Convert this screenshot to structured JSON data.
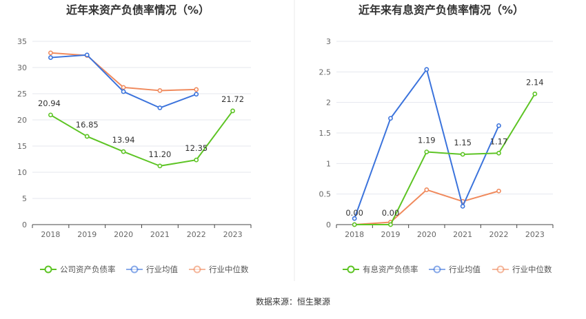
{
  "source_label": "数据来源：恒生聚源",
  "colors": {
    "company": "#5dc424",
    "industry_avg": "#3b73dc",
    "industry_median": "#f08a5d",
    "grid": "#e4e7ee",
    "axis": "#444444"
  },
  "chart_data": [
    {
      "type": "line",
      "title": "近年来资产负债率情况（%）",
      "categories": [
        "2018",
        "2019",
        "2020",
        "2021",
        "2022",
        "2023"
      ],
      "ylim": [
        0,
        35
      ],
      "yticks": [
        "0",
        "5",
        "10",
        "15",
        "20",
        "25",
        "30",
        "35"
      ],
      "grid": true,
      "legend_position": "bottom",
      "series": [
        {
          "name": "公司资产负债率",
          "values": [
            20.94,
            16.85,
            13.94,
            11.2,
            12.35,
            21.72
          ],
          "labels": [
            "20.94",
            "16.85",
            "13.94",
            "11.20",
            "12.35",
            "21.72"
          ]
        },
        {
          "name": "行业均值",
          "values": [
            31.9,
            32.4,
            25.4,
            22.3,
            24.9,
            null
          ]
        },
        {
          "name": "行业中位数",
          "values": [
            32.8,
            32.3,
            26.2,
            25.6,
            25.8,
            null
          ]
        }
      ]
    },
    {
      "type": "line",
      "title": "近年来有息资产负债率情况（%）",
      "categories": [
        "2018",
        "2019",
        "2020",
        "2021",
        "2022",
        "2023"
      ],
      "ylim": [
        0,
        3
      ],
      "yticks": [
        "0",
        "0.5",
        "1",
        "1.5",
        "2",
        "2.5",
        "3"
      ],
      "grid": true,
      "legend_position": "bottom",
      "series": [
        {
          "name": "有息资产负债率",
          "values": [
            0.0,
            0.0,
            1.19,
            1.15,
            1.17,
            2.14
          ],
          "labels": [
            "0.00",
            "0.00",
            "1.19",
            "1.15",
            "1.17",
            "2.14"
          ]
        },
        {
          "name": "行业均值",
          "values": [
            0.1,
            1.74,
            2.54,
            0.3,
            1.62,
            null
          ]
        },
        {
          "name": "行业中位数",
          "values": [
            0.0,
            0.04,
            0.57,
            0.38,
            0.55,
            null
          ]
        }
      ]
    }
  ]
}
